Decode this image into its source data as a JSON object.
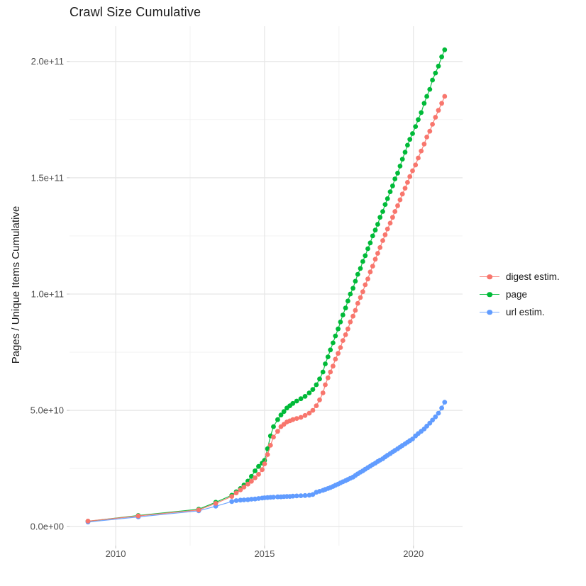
{
  "chart_data": {
    "type": "line",
    "title": "Crawl Size Cumulative",
    "xlabel": "",
    "ylabel": "Pages / Unique Items Cumulative",
    "grid": "on",
    "legend_position": "right",
    "x_tick_values": [
      2010,
      2015,
      2020
    ],
    "x_tick_labels": [
      "2010",
      "2015",
      "2020"
    ],
    "x_minor_tick_values": [
      2012.5,
      2017.5
    ],
    "y_tick_values_billion": [
      0,
      50,
      100,
      150,
      200
    ],
    "y_tick_labels": [
      "0.0e+00",
      "5.0e+10",
      "1.0e+11",
      "1.5e+11",
      "2.0e+11"
    ],
    "y_minor_tick_values_billion": [
      25,
      75,
      125,
      175
    ],
    "xlim": [
      2008.45,
      2021.65
    ],
    "ylim_billion": [
      -8.15,
      215.15
    ],
    "y_unit": 1000000000,
    "x_years": [
      2009.07,
      2010.76,
      2012.79,
      2013.36,
      2013.9,
      2014.05,
      2014.19,
      2014.31,
      2014.44,
      2014.56,
      2014.68,
      2014.8,
      2014.92,
      2015.0,
      2015.1,
      2015.2,
      2015.3,
      2015.44,
      2015.55,
      2015.65,
      2015.75,
      2015.85,
      2015.95,
      2016.08,
      2016.22,
      2016.36,
      2016.5,
      2016.62,
      2016.74,
      2016.85,
      2016.96,
      2017.04,
      2017.13,
      2017.21,
      2017.3,
      2017.38,
      2017.47,
      2017.55,
      2017.63,
      2017.72,
      2017.8,
      2017.88,
      2017.97,
      2018.05,
      2018.13,
      2018.22,
      2018.3,
      2018.38,
      2018.47,
      2018.55,
      2018.63,
      2018.72,
      2018.8,
      2018.88,
      2018.97,
      2019.05,
      2019.13,
      2019.22,
      2019.3,
      2019.38,
      2019.47,
      2019.55,
      2019.63,
      2019.72,
      2019.8,
      2019.88,
      2019.97,
      2020.07,
      2020.16,
      2020.26,
      2020.36,
      2020.45,
      2020.55,
      2020.64,
      2020.74,
      2020.84,
      2020.95,
      2021.05
    ],
    "series": [
      {
        "name": "digest estim.",
        "color": "#F8766D",
        "values_billion": [
          2.4,
          4.6,
          7.2,
          10,
          13,
          14.5,
          15.8,
          17,
          18.3,
          19.5,
          21,
          22.5,
          24.5,
          27,
          31,
          35,
          38.5,
          41,
          43,
          44,
          45,
          45.5,
          46,
          46.5,
          47,
          47.8,
          48.8,
          50,
          52,
          54.5,
          57.5,
          61,
          64,
          66.5,
          69,
          72,
          74.5,
          77,
          80,
          82.5,
          85,
          88,
          90.5,
          93,
          96,
          98.5,
          101,
          104,
          106.5,
          109.5,
          112,
          115,
          117.5,
          120,
          123,
          125.5,
          128,
          130.5,
          133,
          135.5,
          138,
          140.5,
          143,
          145.5,
          148,
          150.5,
          153,
          155.5,
          158.5,
          161.5,
          164.5,
          167.5,
          170,
          173,
          176,
          179,
          182,
          185
        ]
      },
      {
        "name": "page",
        "color": "#00BA38",
        "values_billion": [
          2.3,
          4.8,
          7.5,
          10.5,
          13.5,
          15,
          16.4,
          17.9,
          19.6,
          21.6,
          24,
          25.9,
          27.3,
          28.5,
          33.5,
          39,
          43,
          46,
          48,
          49.5,
          51,
          52,
          53,
          54,
          55,
          56,
          57.5,
          59,
          61,
          63.5,
          66.5,
          70,
          73,
          76,
          79,
          82,
          85,
          88,
          91,
          94,
          97,
          100,
          102.5,
          105.5,
          108.5,
          111,
          114,
          116.5,
          119.5,
          122,
          125,
          127.5,
          130,
          133,
          135.5,
          138.5,
          141,
          144,
          146.5,
          149.5,
          152,
          155,
          158,
          161,
          164,
          166.5,
          169,
          172,
          175,
          178,
          182,
          185,
          188,
          192,
          195,
          198,
          202,
          205
        ]
      },
      {
        "name": "url estim.",
        "color": "#619CFF",
        "values_billion": [
          2,
          4.2,
          6.8,
          8.8,
          10.8,
          11.2,
          11.4,
          11.5,
          11.6,
          11.8,
          11.9,
          12.1,
          12.3,
          12.4,
          12.5,
          12.6,
          12.7,
          12.8,
          12.8,
          12.9,
          13,
          13,
          13.1,
          13.2,
          13.3,
          13.4,
          13.5,
          13.8,
          14.8,
          15.2,
          15.6,
          16,
          16.4,
          16.8,
          17.3,
          17.8,
          18.3,
          18.8,
          19.3,
          19.8,
          20.3,
          20.8,
          21.3,
          22,
          22.7,
          23.4,
          24,
          24.7,
          25.4,
          26,
          26.7,
          27.3,
          28,
          28.6,
          29.2,
          30,
          30.7,
          31.4,
          32.1,
          32.8,
          33.5,
          34.2,
          34.9,
          35.6,
          36.3,
          37,
          37.7,
          39,
          40,
          41,
          42,
          43.2,
          44.5,
          45.8,
          47.2,
          48.8,
          51,
          53.5
        ]
      }
    ],
    "draw_order": [
      1,
      2,
      0
    ],
    "style": {
      "major_grid_color": "#e6e6e6",
      "minor_grid_color": "#f1f1f1",
      "tick_mark_color": "#cfcfcf",
      "tick_label_color": "#4d4d4d",
      "point_radius": 3.4
    }
  }
}
